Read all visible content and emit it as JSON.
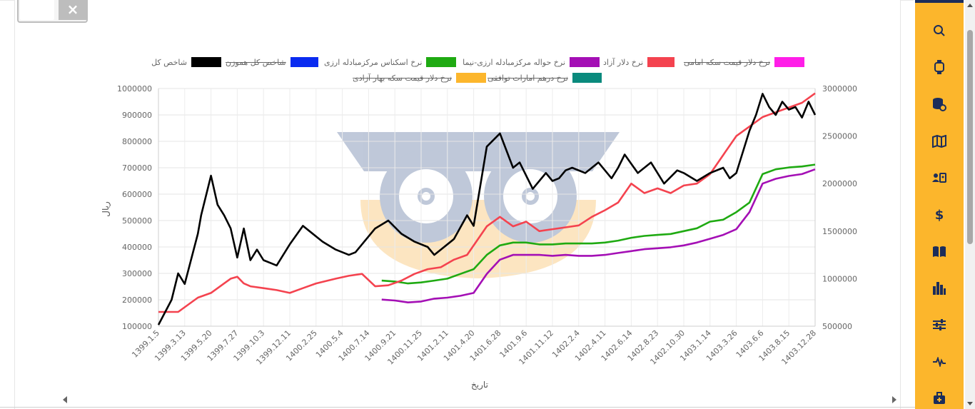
{
  "close_button": {
    "label": "×"
  },
  "sidebar": {
    "icons": [
      "search-icon",
      "watch-icon",
      "coins-icon",
      "map-icon",
      "user-card-icon",
      "dollar-icon",
      "book-icon",
      "bar-chart-icon",
      "sliders-icon",
      "pulse-icon",
      "briefcase-icon"
    ]
  },
  "chart_data": {
    "type": "line",
    "title": "",
    "xlabel": "تاریخ",
    "ylabel": "ریال",
    "ylim": [
      100000,
      1000000
    ],
    "y2lim": [
      500000,
      3000000
    ],
    "yticks": [
      "1000000",
      "900000",
      "800000",
      "700000",
      "600000",
      "500000",
      "400000",
      "300000",
      "200000",
      "100000"
    ],
    "y2ticks": [
      "3000000",
      "2500000",
      "2000000",
      "1500000",
      "1000000",
      "500000"
    ],
    "xticks": [
      "1399.1.5",
      "1399.3.13",
      "1399.5.20",
      "1399.7.27",
      "1399.10.3",
      "1399.12.11",
      "1400.2.25",
      "1400.5.4",
      "1400.7.14",
      "1400.9.21",
      "1400.11.25",
      "1401.2.11",
      "1401.4.20",
      "1401.6.28",
      "1401.9.6",
      "1401.11.12",
      "1402.2.4",
      "1402.4.11",
      "1402.6.14",
      "1402.8.23",
      "1402.10.30",
      "1403.1.14",
      "1403.3.26",
      "1403.6.6",
      "1403.8.15",
      "1403.12.28"
    ],
    "legend_position": "top",
    "grid": true,
    "legend": [
      {
        "name": "شاخص کل",
        "color": "#000000",
        "hidden": false
      },
      {
        "name": "شاخص کل هموزن",
        "color": "#0a2bf0",
        "hidden": true
      },
      {
        "name": "نرخ اسکناس مرکزمبادله ارزی",
        "color": "#1faa12",
        "hidden": false
      },
      {
        "name": "نرخ حواله مرکزمبادله ارزی-نیما",
        "color": "#a40fb5",
        "hidden": false
      },
      {
        "name": "نرخ دلار آزاد",
        "color": "#f4434f",
        "hidden": false
      },
      {
        "name": "نرخ دلار قیمت سکه امامی",
        "color": "#ff1ee8",
        "hidden": true
      },
      {
        "name": "نرخ درهم امارات توافقی",
        "color": "#0a8a7d",
        "hidden": true
      },
      {
        "name": "نرخ دلار قیمت سکه بهار آزادی",
        "color": "#fcb62c",
        "hidden": true
      }
    ],
    "series": [
      {
        "name": "شاخص کل",
        "axis": "left",
        "color": "#000000",
        "x": [
          0,
          0.02,
          0.03,
          0.04,
          0.06,
          0.065,
          0.08,
          0.09,
          0.1,
          0.11,
          0.12,
          0.13,
          0.14,
          0.15,
          0.16,
          0.18,
          0.2,
          0.22,
          0.23,
          0.25,
          0.27,
          0.29,
          0.3,
          0.32,
          0.33,
          0.35,
          0.37,
          0.39,
          0.41,
          0.42,
          0.45,
          0.47,
          0.48,
          0.5,
          0.52,
          0.54,
          0.55,
          0.57,
          0.59,
          0.6,
          0.61,
          0.62,
          0.63,
          0.65,
          0.66,
          0.67,
          0.69,
          0.7,
          0.71,
          0.73,
          0.75,
          0.77,
          0.79,
          0.8,
          0.82,
          0.84,
          0.86,
          0.87,
          0.88,
          0.9,
          0.91,
          0.92,
          0.93,
          0.94,
          0.95,
          0.96,
          0.97,
          0.98,
          0.99,
          1.0
        ],
        "y": [
          105000,
          200000,
          300000,
          260000,
          450000,
          520000,
          670000,
          560000,
          520000,
          470000,
          360000,
          470000,
          350000,
          390000,
          350000,
          330000,
          410000,
          480000,
          460000,
          420000,
          390000,
          370000,
          380000,
          440000,
          470000,
          500000,
          450000,
          420000,
          400000,
          370000,
          430000,
          520000,
          480000,
          780000,
          830000,
          700000,
          720000,
          620000,
          680000,
          650000,
          660000,
          690000,
          700000,
          680000,
          700000,
          720000,
          660000,
          700000,
          750000,
          680000,
          720000,
          640000,
          690000,
          680000,
          650000,
          680000,
          700000,
          660000,
          680000,
          840000,
          900000,
          980000,
          930000,
          900000,
          950000,
          920000,
          930000,
          890000,
          950000,
          900000
        ]
      },
      {
        "name": "نرخ دلار آزاد",
        "axis": "right",
        "color": "#f4434f",
        "x": [
          0,
          0.03,
          0.06,
          0.08,
          0.1,
          0.11,
          0.12,
          0.13,
          0.14,
          0.16,
          0.18,
          0.2,
          0.22,
          0.24,
          0.27,
          0.29,
          0.31,
          0.33,
          0.35,
          0.37,
          0.39,
          0.41,
          0.43,
          0.45,
          0.47,
          0.49,
          0.5,
          0.52,
          0.54,
          0.56,
          0.58,
          0.6,
          0.62,
          0.64,
          0.66,
          0.68,
          0.7,
          0.72,
          0.74,
          0.76,
          0.78,
          0.8,
          0.82,
          0.84,
          0.86,
          0.88,
          0.9,
          0.92,
          0.94,
          0.96,
          0.98,
          1.0
        ],
        "y": [
          650000,
          650000,
          800000,
          850000,
          950000,
          1000000,
          1020000,
          950000,
          920000,
          900000,
          880000,
          850000,
          900000,
          950000,
          1000000,
          1030000,
          1050000,
          920000,
          930000,
          980000,
          1050000,
          1100000,
          1120000,
          1200000,
          1250000,
          1450000,
          1550000,
          1650000,
          1550000,
          1600000,
          1500000,
          1520000,
          1540000,
          1560000,
          1650000,
          1720000,
          1800000,
          2000000,
          1900000,
          1950000,
          1900000,
          1980000,
          2000000,
          2100000,
          2300000,
          2500000,
          2600000,
          2700000,
          2750000,
          2800000,
          2850000,
          2950000
        ]
      },
      {
        "name": "نرخ اسکناس مرکزمبادله ارزی",
        "axis": "right",
        "color": "#1faa12",
        "x": [
          0.34,
          0.36,
          0.38,
          0.4,
          0.42,
          0.44,
          0.46,
          0.48,
          0.5,
          0.52,
          0.54,
          0.56,
          0.58,
          0.6,
          0.62,
          0.64,
          0.66,
          0.68,
          0.7,
          0.72,
          0.74,
          0.76,
          0.78,
          0.8,
          0.82,
          0.84,
          0.86,
          0.88,
          0.9,
          0.92,
          0.94,
          0.96,
          0.98,
          1.0
        ],
        "y": [
          980000,
          970000,
          950000,
          960000,
          980000,
          1000000,
          1050000,
          1100000,
          1250000,
          1350000,
          1380000,
          1380000,
          1360000,
          1360000,
          1370000,
          1370000,
          1370000,
          1380000,
          1400000,
          1430000,
          1450000,
          1460000,
          1470000,
          1500000,
          1530000,
          1600000,
          1620000,
          1700000,
          1800000,
          2100000,
          2150000,
          2170000,
          2180000,
          2200000
        ]
      },
      {
        "name": "نرخ حواله مرکزمبادله ارزی-نیما",
        "axis": "right",
        "color": "#a40fb5",
        "x": [
          0.34,
          0.36,
          0.38,
          0.4,
          0.42,
          0.44,
          0.46,
          0.48,
          0.5,
          0.52,
          0.54,
          0.56,
          0.58,
          0.6,
          0.62,
          0.64,
          0.66,
          0.68,
          0.7,
          0.72,
          0.74,
          0.76,
          0.78,
          0.8,
          0.82,
          0.84,
          0.86,
          0.88,
          0.9,
          0.92,
          0.94,
          0.96,
          0.98,
          1.0
        ],
        "y": [
          780000,
          770000,
          750000,
          760000,
          790000,
          800000,
          820000,
          850000,
          1050000,
          1200000,
          1250000,
          1250000,
          1250000,
          1240000,
          1250000,
          1240000,
          1240000,
          1250000,
          1270000,
          1290000,
          1310000,
          1320000,
          1330000,
          1350000,
          1380000,
          1420000,
          1460000,
          1520000,
          1700000,
          2000000,
          2050000,
          2080000,
          2100000,
          2150000
        ]
      }
    ]
  }
}
